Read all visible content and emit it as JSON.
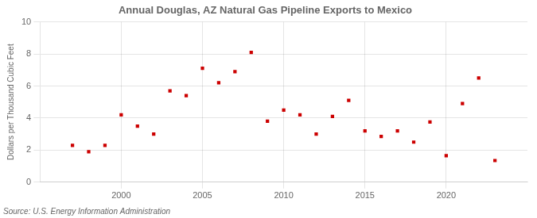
{
  "chart_data": {
    "type": "scatter",
    "title": "Annual Douglas, AZ Natural Gas Pipeline Exports to Mexico",
    "ylabel": "Dollars per Thousand Cubic Feet",
    "annotations": [
      "Source: U.S. Energy Information Administration"
    ],
    "x": [
      1997,
      1998,
      1999,
      2000,
      2001,
      2002,
      2003,
      2004,
      2005,
      2006,
      2007,
      2008,
      2009,
      2010,
      2011,
      2012,
      2013,
      2014,
      2015,
      2016,
      2017,
      2018,
      2019,
      2020,
      2021,
      2022,
      2023
    ],
    "values": [
      2.3,
      1.9,
      2.3,
      4.2,
      3.5,
      3.0,
      5.7,
      5.4,
      7.1,
      6.2,
      6.9,
      8.1,
      3.8,
      4.5,
      4.2,
      3.0,
      4.1,
      5.1,
      3.2,
      2.85,
      3.2,
      2.5,
      3.75,
      1.65,
      4.9,
      6.5,
      1.35
    ],
    "color": "#cc0000",
    "marker": "square",
    "xlim": [
      1995,
      2025
    ],
    "ylim": [
      0,
      10
    ],
    "xticks": [
      2000,
      2005,
      2010,
      2015,
      2020
    ],
    "yticks": [
      0,
      2,
      4,
      6,
      8,
      10
    ],
    "grid": true
  }
}
